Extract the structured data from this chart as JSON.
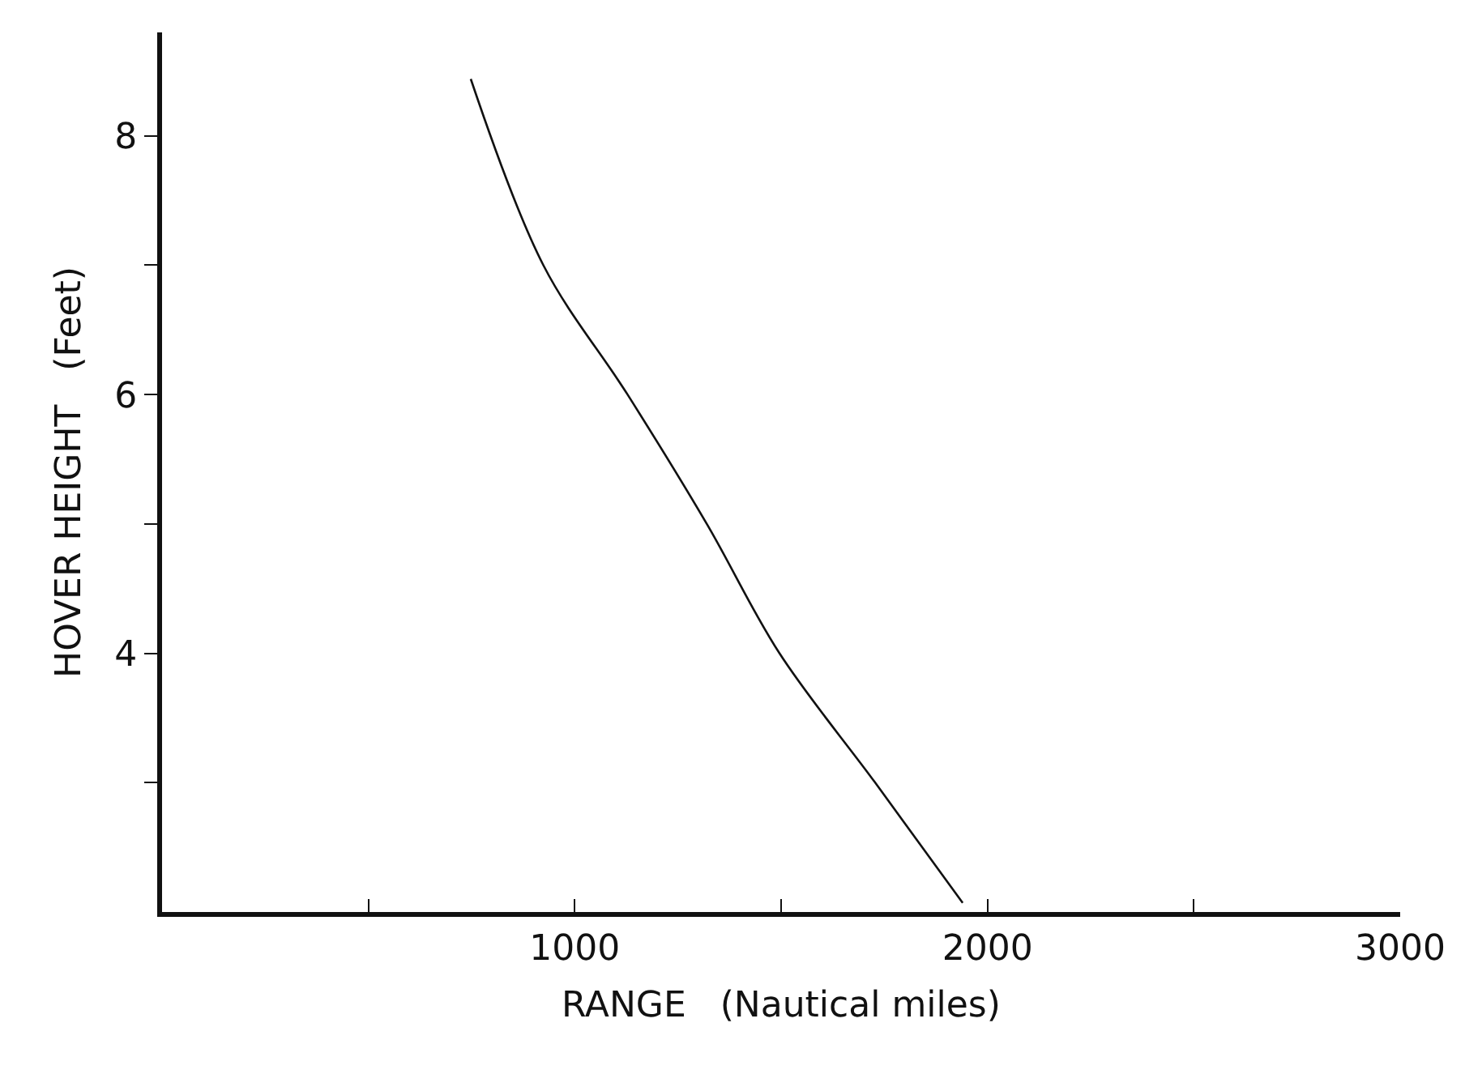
{
  "chart_data": {
    "type": "line",
    "xlabel": "RANGE   (Nautical miles)",
    "ylabel": "HOVER HEIGHT   (Feet)",
    "x": [
      748,
      924,
      1128,
      1320,
      1496,
      1728,
      1940
    ],
    "series": [
      {
        "color": "#111111",
        "values": [
          8.44,
          7,
          6,
          5,
          4,
          3,
          2.07
        ]
      }
    ],
    "xlim": [
      0,
      3000
    ],
    "ylim": [
      2,
      8.8
    ],
    "xticks": [
      {
        "value": 500,
        "label": null
      },
      1000,
      {
        "value": 1500,
        "label": null
      },
      2000,
      {
        "value": 2500,
        "label": null
      },
      3000
    ],
    "yticks": [
      {
        "value": 3,
        "label": null
      },
      4,
      {
        "value": 5,
        "label": null
      },
      6,
      {
        "value": 7,
        "label": null
      },
      8
    ],
    "marker": "none",
    "line_style": "solid"
  }
}
